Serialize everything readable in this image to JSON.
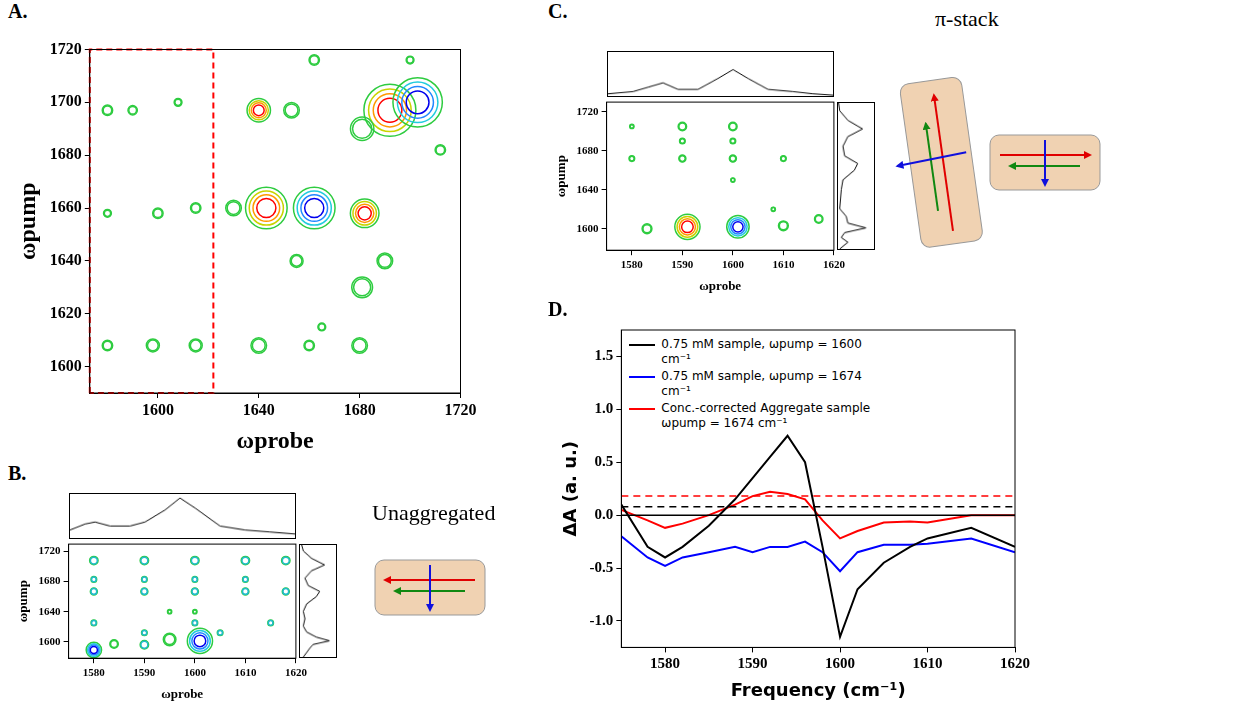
{
  "chart_data": [
    {
      "type": "contour",
      "title": "A.",
      "x_label": "ωprobe",
      "y_label": "ωpump",
      "xlim": [
        1573,
        1720
      ],
      "xticks": [
        1600,
        1640,
        1680,
        1720
      ],
      "ylim": [
        1590,
        1720
      ],
      "yticks": [
        1600,
        1620,
        1640,
        1660,
        1680,
        1700,
        1720
      ],
      "grid": false,
      "peaks": [
        {
          "x": 1692,
          "y": 1697,
          "size": 1.0,
          "color": "red"
        },
        {
          "x": 1703,
          "y": 1700,
          "size": 0.95,
          "color": "blue"
        },
        {
          "x": 1643,
          "y": 1660,
          "size": 0.8,
          "color": "red"
        },
        {
          "x": 1662,
          "y": 1660,
          "size": 0.8,
          "color": "blue"
        },
        {
          "x": 1682,
          "y": 1658,
          "size": 0.55,
          "color": "red"
        },
        {
          "x": 1681,
          "y": 1690,
          "size": 0.45,
          "color": "green"
        },
        {
          "x": 1681,
          "y": 1630,
          "size": 0.4,
          "color": "green"
        },
        {
          "x": 1640,
          "y": 1697,
          "size": 0.45,
          "color": "red"
        },
        {
          "x": 1653,
          "y": 1697,
          "size": 0.3,
          "color": "green"
        },
        {
          "x": 1655,
          "y": 1640,
          "size": 0.25,
          "color": "green"
        },
        {
          "x": 1630,
          "y": 1660,
          "size": 0.3,
          "color": "green"
        },
        {
          "x": 1615,
          "y": 1660,
          "size": 0.2,
          "color": "green"
        },
        {
          "x": 1600,
          "y": 1658,
          "size": 0.2,
          "color": "green"
        },
        {
          "x": 1580,
          "y": 1658,
          "size": 0.15,
          "color": "green"
        },
        {
          "x": 1580,
          "y": 1697,
          "size": 0.2,
          "color": "green"
        },
        {
          "x": 1590,
          "y": 1697,
          "size": 0.18,
          "color": "green"
        },
        {
          "x": 1608,
          "y": 1700,
          "size": 0.15,
          "color": "green"
        },
        {
          "x": 1580,
          "y": 1608,
          "size": 0.2,
          "color": "green"
        },
        {
          "x": 1598,
          "y": 1608,
          "size": 0.25,
          "color": "green"
        },
        {
          "x": 1615,
          "y": 1608,
          "size": 0.25,
          "color": "green"
        },
        {
          "x": 1640,
          "y": 1608,
          "size": 0.3,
          "color": "green"
        },
        {
          "x": 1660,
          "y": 1608,
          "size": 0.2,
          "color": "green"
        },
        {
          "x": 1680,
          "y": 1608,
          "size": 0.3,
          "color": "green"
        },
        {
          "x": 1665,
          "y": 1615,
          "size": 0.15,
          "color": "green"
        },
        {
          "x": 1690,
          "y": 1640,
          "size": 0.3,
          "color": "green"
        },
        {
          "x": 1712,
          "y": 1682,
          "size": 0.2,
          "color": "green"
        },
        {
          "x": 1662,
          "y": 1716,
          "size": 0.2,
          "color": "green"
        },
        {
          "x": 1700,
          "y": 1716,
          "size": 0.15,
          "color": "green"
        }
      ],
      "region": {
        "x": [
          1573,
          1622
        ],
        "y": [
          1590,
          1720
        ],
        "color": "#ff0000",
        "line_style": "dashed"
      }
    },
    {
      "type": "contour",
      "title": "B.",
      "x_label": "ωprobe",
      "y_label": "ωpump",
      "annotation": "Unaggregated",
      "xlim": [
        1575,
        1620
      ],
      "xticks": [
        1580,
        1590,
        1600,
        1610,
        1620
      ],
      "ylim": [
        1578,
        1730
      ],
      "yticks": [
        1600,
        1640,
        1680,
        1720
      ],
      "grid": false,
      "peaks": [
        {
          "x": 1601,
          "y": 1601,
          "size": 0.9,
          "color": "blue"
        },
        {
          "x": 1595,
          "y": 1603,
          "size": 0.45,
          "color": "green"
        },
        {
          "x": 1580,
          "y": 1589,
          "size": 0.55,
          "color": "blue"
        },
        {
          "x": 1584,
          "y": 1597,
          "size": 0.3,
          "color": "green"
        },
        {
          "x": 1590,
          "y": 1596,
          "size": 0.3,
          "color": "cyan"
        },
        {
          "x": 1580,
          "y": 1708,
          "size": 0.3,
          "color": "cyan"
        },
        {
          "x": 1590,
          "y": 1708,
          "size": 0.3,
          "color": "cyan"
        },
        {
          "x": 1600,
          "y": 1708,
          "size": 0.3,
          "color": "cyan"
        },
        {
          "x": 1610,
          "y": 1708,
          "size": 0.3,
          "color": "cyan"
        },
        {
          "x": 1618,
          "y": 1708,
          "size": 0.3,
          "color": "cyan"
        },
        {
          "x": 1580,
          "y": 1683,
          "size": 0.2,
          "color": "cyan"
        },
        {
          "x": 1590,
          "y": 1683,
          "size": 0.2,
          "color": "cyan"
        },
        {
          "x": 1600,
          "y": 1683,
          "size": 0.2,
          "color": "cyan"
        },
        {
          "x": 1610,
          "y": 1683,
          "size": 0.2,
          "color": "cyan"
        },
        {
          "x": 1580,
          "y": 1667,
          "size": 0.25,
          "color": "cyan"
        },
        {
          "x": 1590,
          "y": 1667,
          "size": 0.25,
          "color": "cyan"
        },
        {
          "x": 1600,
          "y": 1667,
          "size": 0.25,
          "color": "cyan"
        },
        {
          "x": 1610,
          "y": 1667,
          "size": 0.25,
          "color": "cyan"
        },
        {
          "x": 1618,
          "y": 1667,
          "size": 0.25,
          "color": "cyan"
        },
        {
          "x": 1595,
          "y": 1640,
          "size": 0.15,
          "color": "green"
        },
        {
          "x": 1600,
          "y": 1640,
          "size": 0.15,
          "color": "green"
        },
        {
          "x": 1580,
          "y": 1625,
          "size": 0.2,
          "color": "cyan"
        },
        {
          "x": 1600,
          "y": 1625,
          "size": 0.2,
          "color": "cyan"
        },
        {
          "x": 1615,
          "y": 1625,
          "size": 0.2,
          "color": "cyan"
        },
        {
          "x": 1590,
          "y": 1612,
          "size": 0.2,
          "color": "cyan"
        },
        {
          "x": 1605,
          "y": 1612,
          "size": 0.2,
          "color": "cyan"
        }
      ],
      "top_spectrum": {
        "frequencies": [
          1575,
          1578,
          1580,
          1583,
          1587,
          1590,
          1594,
          1597,
          1600,
          1605,
          1610,
          1615,
          1620
        ],
        "values": [
          0.2,
          0.35,
          0.4,
          0.3,
          0.3,
          0.4,
          0.7,
          1.0,
          0.75,
          0.3,
          0.2,
          0.15,
          0.1
        ],
        "lim": [
          0,
          1.1
        ],
        "tick_labels": false
      },
      "side_spectrum": {
        "frequencies": [
          1578,
          1590,
          1595,
          1600,
          1605,
          1612,
          1620,
          1630,
          1640,
          1650,
          1660,
          1667,
          1675,
          1685,
          1695,
          1703,
          1712,
          1722,
          1730
        ],
        "values": [
          0.1,
          0.3,
          0.4,
          0.9,
          0.5,
          0.2,
          0.1,
          0.15,
          0.1,
          0.2,
          0.5,
          0.6,
          0.25,
          0.15,
          0.35,
          0.75,
          0.35,
          0.1,
          0.05
        ],
        "lim": [
          0,
          1.1
        ],
        "tick_labels": false
      }
    },
    {
      "type": "contour",
      "title": "C.",
      "x_label": "ωprobe",
      "y_label": "ωpump",
      "annotation": "π-stack",
      "xlim": [
        1575,
        1620
      ],
      "xticks": [
        1580,
        1590,
        1600,
        1610,
        1620
      ],
      "ylim": [
        1578,
        1730
      ],
      "yticks": [
        1600,
        1640,
        1680,
        1720
      ],
      "grid": false,
      "peaks": [
        {
          "x": 1591,
          "y": 1602,
          "size": 0.9,
          "color": "red"
        },
        {
          "x": 1601,
          "y": 1602,
          "size": 0.8,
          "color": "blue"
        },
        {
          "x": 1583,
          "y": 1600,
          "size": 0.35,
          "color": "green"
        },
        {
          "x": 1610,
          "y": 1603,
          "size": 0.35,
          "color": "green"
        },
        {
          "x": 1617,
          "y": 1610,
          "size": 0.3,
          "color": "green"
        },
        {
          "x": 1580,
          "y": 1705,
          "size": 0.15,
          "color": "green"
        },
        {
          "x": 1590,
          "y": 1705,
          "size": 0.3,
          "color": "green"
        },
        {
          "x": 1600,
          "y": 1705,
          "size": 0.3,
          "color": "green"
        },
        {
          "x": 1590,
          "y": 1690,
          "size": 0.2,
          "color": "green"
        },
        {
          "x": 1600,
          "y": 1690,
          "size": 0.2,
          "color": "green"
        },
        {
          "x": 1580,
          "y": 1672,
          "size": 0.2,
          "color": "green"
        },
        {
          "x": 1590,
          "y": 1672,
          "size": 0.25,
          "color": "green"
        },
        {
          "x": 1600,
          "y": 1672,
          "size": 0.25,
          "color": "green"
        },
        {
          "x": 1610,
          "y": 1672,
          "size": 0.2,
          "color": "green"
        },
        {
          "x": 1600,
          "y": 1650,
          "size": 0.15,
          "color": "green"
        },
        {
          "x": 1608,
          "y": 1620,
          "size": 0.15,
          "color": "green"
        }
      ],
      "top_spectrum": {
        "frequencies": [
          1575,
          1580,
          1583,
          1586,
          1589,
          1593,
          1597,
          1600,
          1603,
          1607,
          1612,
          1616,
          1620
        ],
        "values": [
          0.05,
          0.1,
          0.2,
          0.3,
          0.15,
          0.15,
          0.4,
          0.6,
          0.4,
          0.15,
          0.1,
          0.05,
          0.02
        ],
        "lim": [
          0,
          1.0
        ],
        "tick_labels": false
      },
      "side_spectrum": {
        "frequencies": [
          1578,
          1585,
          1590,
          1595,
          1600,
          1605,
          1612,
          1620,
          1640,
          1650,
          1660,
          1667,
          1675,
          1685,
          1695,
          1703,
          1712,
          1722,
          1730
        ],
        "values": [
          0.05,
          0.3,
          0.1,
          0.2,
          0.85,
          0.3,
          0.25,
          0.05,
          0.1,
          0.15,
          0.5,
          0.6,
          0.2,
          0.15,
          0.3,
          0.75,
          0.3,
          0.05,
          0.02
        ],
        "lim": [
          0,
          1.1
        ],
        "tick_labels": false
      }
    },
    {
      "type": "line",
      "title": "D.",
      "x_label": "Frequency (cm⁻¹)",
      "y_label": "ΔA (a. u.)",
      "xlim": [
        1575,
        1620
      ],
      "xticks": [
        1580,
        1590,
        1600,
        1610,
        1620
      ],
      "ylim": [
        -1.25,
        1.75
      ],
      "yticks": [
        {
          "value": -1,
          "label": "-1.0"
        },
        -0.5,
        {
          "value": 0,
          "label": "0.0"
        },
        0.5,
        {
          "value": 1,
          "label": "1.0"
        },
        1.5
      ],
      "grid": false,
      "legend": "upper left",
      "x": [
        1575,
        1578,
        1580,
        1582,
        1585,
        1588,
        1590,
        1592,
        1594,
        1596,
        1598,
        1600,
        1602,
        1605,
        1608,
        1610,
        1615,
        1620
      ],
      "series": [
        {
          "name": "0.75 mM sample, ωpump = 1600 cm⁻¹",
          "color": "#000000",
          "values": [
            0.1,
            -0.3,
            -0.4,
            -0.3,
            -0.1,
            0.15,
            0.35,
            0.55,
            0.75,
            0.5,
            -0.3,
            -1.15,
            -0.7,
            -0.45,
            -0.3,
            -0.22,
            -0.12,
            -0.3
          ]
        },
        {
          "name": "0.75 mM sample, ωpump = 1674 cm⁻¹",
          "color": "#0000ff",
          "values": [
            -0.2,
            -0.4,
            -0.48,
            -0.4,
            -0.35,
            -0.3,
            -0.35,
            -0.3,
            -0.3,
            -0.25,
            -0.35,
            -0.53,
            -0.35,
            -0.28,
            -0.28,
            -0.27,
            -0.22,
            -0.35
          ]
        },
        {
          "name": "Conc.-corrected Aggregate sample ωpump = 1674 cm⁻¹",
          "color": "#ff0000",
          "values": [
            0.05,
            -0.05,
            -0.12,
            -0.08,
            0.0,
            0.1,
            0.18,
            0.22,
            0.2,
            0.15,
            -0.05,
            -0.22,
            -0.15,
            -0.07,
            -0.06,
            -0.07,
            0.0,
            0.0
          ]
        }
      ],
      "reference_lines": [
        {
          "value": 0.08,
          "color": "#000000",
          "line_style": "dashed"
        },
        {
          "value": 0.18,
          "color": "#ff0000",
          "line_style": "dashed"
        },
        {
          "value": 0,
          "color": "#000000",
          "line_style": "solid"
        }
      ]
    }
  ]
}
